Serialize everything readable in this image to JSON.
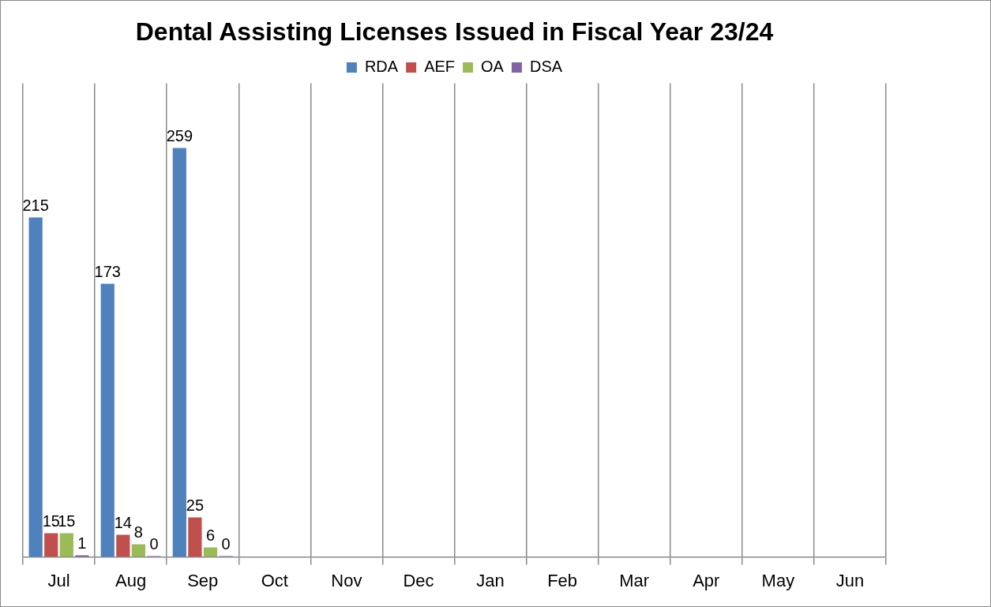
{
  "chart_data": {
    "type": "bar",
    "title": "Dental Assisting Licenses Issued in Fiscal Year 23/24",
    "categories": [
      "Jul",
      "Aug",
      "Sep",
      "Oct",
      "Nov",
      "Dec",
      "Jan",
      "Feb",
      "Mar",
      "Apr",
      "May",
      "Jun"
    ],
    "series": [
      {
        "name": "RDA",
        "color": "#4f81bd",
        "values": [
          215,
          173,
          259,
          null,
          null,
          null,
          null,
          null,
          null,
          null,
          null,
          null
        ]
      },
      {
        "name": "AEF",
        "color": "#c0504d",
        "values": [
          15,
          14,
          25,
          null,
          null,
          null,
          null,
          null,
          null,
          null,
          null,
          null
        ]
      },
      {
        "name": "OA",
        "color": "#9bbb59",
        "values": [
          15,
          8,
          6,
          null,
          null,
          null,
          null,
          null,
          null,
          null,
          null,
          null
        ]
      },
      {
        "name": "DSA",
        "color": "#8064a2",
        "values": [
          1,
          0,
          0,
          null,
          null,
          null,
          null,
          null,
          null,
          null,
          null,
          null
        ]
      }
    ],
    "ylim": [
      0,
      300
    ],
    "data_labels": true,
    "grid": "x",
    "legend": "top",
    "tick_labels": "x"
  }
}
